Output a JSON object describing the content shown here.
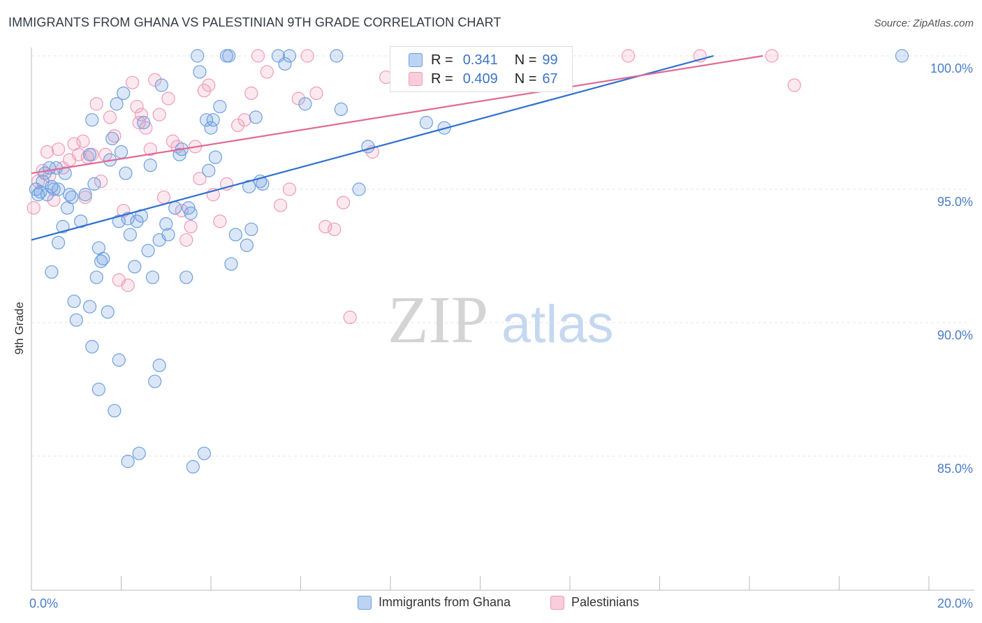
{
  "header": {
    "title": "IMMIGRANTS FROM GHANA VS PALESTINIAN 9TH GRADE CORRELATION CHART",
    "source": "Source: ZipAtlas.com"
  },
  "watermark": {
    "zip": "ZIP",
    "atlas": "atlas"
  },
  "legend": {
    "r_label": "R =",
    "n_label": "N =",
    "series": [
      {
        "name": "Immigrants from Ghana",
        "r": "0.341",
        "n": "99"
      },
      {
        "name": "Palestinians",
        "r": "0.409",
        "n": "67"
      }
    ]
  },
  "chart_data": {
    "type": "scatter",
    "title": "IMMIGRANTS FROM GHANA VS PALESTINIAN 9TH GRADE CORRELATION CHART",
    "xlabel": "",
    "ylabel": "9th Grade",
    "xlim": [
      0,
      20
    ],
    "ylim": [
      80.5,
      100.5
    ],
    "x_tick_labels": [
      "0.0%",
      "20.0%"
    ],
    "y_ticks": [
      85,
      90,
      95,
      100
    ],
    "y_tick_labels": [
      "85.0%",
      "90.0%",
      "95.0%",
      "100.0%"
    ],
    "grid": true,
    "colors": {
      "ghana": "#6f9fe0",
      "ghana_line": "#2e6fd0",
      "pal": "#f09ab8",
      "pal_line": "#e06a95"
    },
    "series": [
      {
        "name": "Immigrants from Ghana",
        "trend": {
          "x": [
            0,
            15.2
          ],
          "y": [
            93.1,
            100.0
          ]
        },
        "points": [
          [
            0.1,
            95.0
          ],
          [
            0.15,
            94.8
          ],
          [
            0.2,
            94.9
          ],
          [
            0.25,
            95.3
          ],
          [
            0.3,
            95.6
          ],
          [
            0.35,
            94.8
          ],
          [
            0.4,
            95.8
          ],
          [
            0.45,
            95.1
          ],
          [
            0.5,
            95.0
          ],
          [
            0.55,
            95.8
          ],
          [
            0.6,
            93.0
          ],
          [
            0.7,
            93.6
          ],
          [
            0.75,
            95.6
          ],
          [
            0.8,
            94.3
          ],
          [
            0.85,
            94.8
          ],
          [
            0.9,
            94.7
          ],
          [
            1.1,
            93.8
          ],
          [
            1.2,
            94.8
          ],
          [
            1.4,
            95.2
          ],
          [
            1.3,
            90.6
          ],
          [
            1.35,
            89.1
          ],
          [
            1.5,
            92.8
          ],
          [
            1.55,
            92.3
          ],
          [
            1.6,
            92.4
          ],
          [
            1.7,
            90.4
          ],
          [
            1.75,
            96.1
          ],
          [
            1.8,
            96.9
          ],
          [
            1.9,
            98.2
          ],
          [
            1.95,
            93.8
          ],
          [
            2.0,
            96.4
          ],
          [
            2.05,
            98.6
          ],
          [
            2.1,
            95.6
          ],
          [
            2.15,
            93.9
          ],
          [
            2.2,
            93.3
          ],
          [
            2.3,
            92.1
          ],
          [
            2.35,
            93.8
          ],
          [
            2.45,
            94.0
          ],
          [
            2.5,
            97.5
          ],
          [
            2.6,
            92.7
          ],
          [
            2.65,
            95.9
          ],
          [
            2.7,
            91.7
          ],
          [
            2.85,
            93.1
          ],
          [
            2.9,
            98.9
          ],
          [
            3.0,
            93.7
          ],
          [
            3.05,
            93.3
          ],
          [
            3.2,
            94.3
          ],
          [
            3.3,
            96.3
          ],
          [
            3.35,
            96.5
          ],
          [
            3.45,
            91.7
          ],
          [
            3.5,
            94.3
          ],
          [
            3.55,
            94.1
          ],
          [
            3.7,
            100.0
          ],
          [
            3.75,
            99.4
          ],
          [
            3.9,
            97.6
          ],
          [
            3.95,
            95.7
          ],
          [
            4.0,
            97.3
          ],
          [
            4.05,
            97.6
          ],
          [
            4.1,
            96.2
          ],
          [
            4.2,
            98.1
          ],
          [
            4.35,
            100.0
          ],
          [
            4.4,
            100.0
          ],
          [
            4.45,
            92.2
          ],
          [
            4.55,
            93.3
          ],
          [
            4.8,
            92.9
          ],
          [
            4.85,
            95.1
          ],
          [
            4.9,
            93.5
          ],
          [
            5.0,
            97.7
          ],
          [
            5.1,
            95.3
          ],
          [
            5.15,
            95.2
          ],
          [
            5.65,
            99.7
          ],
          [
            5.75,
            100.0
          ],
          [
            5.5,
            100.0
          ],
          [
            6.1,
            98.2
          ],
          [
            6.8,
            100.0
          ],
          [
            6.9,
            98.0
          ],
          [
            7.3,
            95.0
          ],
          [
            7.5,
            96.6
          ],
          [
            8.2,
            100.0
          ],
          [
            8.8,
            97.5
          ],
          [
            9.2,
            97.3
          ],
          [
            9.4,
            100.0
          ],
          [
            9.8,
            100.0
          ],
          [
            0.45,
            91.9
          ],
          [
            0.95,
            90.8
          ],
          [
            1.0,
            90.1
          ],
          [
            1.45,
            91.7
          ],
          [
            1.5,
            87.5
          ],
          [
            1.85,
            86.7
          ],
          [
            1.95,
            88.6
          ],
          [
            2.15,
            84.8
          ],
          [
            2.4,
            85.1
          ],
          [
            2.75,
            87.8
          ],
          [
            2.85,
            88.4
          ],
          [
            3.6,
            84.6
          ],
          [
            3.85,
            85.1
          ],
          [
            1.35,
            97.6
          ],
          [
            0.6,
            95.0
          ],
          [
            1.3,
            96.3
          ],
          [
            19.4,
            100.0
          ]
        ]
      },
      {
        "name": "Palestinians",
        "trend": {
          "x": [
            0,
            16.3
          ],
          "y": [
            95.6,
            100.0
          ]
        },
        "points": [
          [
            0.05,
            94.3
          ],
          [
            0.15,
            95.3
          ],
          [
            0.25,
            95.7
          ],
          [
            0.35,
            96.4
          ],
          [
            0.4,
            95.5
          ],
          [
            0.5,
            94.6
          ],
          [
            0.6,
            96.5
          ],
          [
            0.7,
            95.8
          ],
          [
            0.85,
            96.1
          ],
          [
            0.95,
            96.7
          ],
          [
            1.05,
            96.3
          ],
          [
            1.15,
            96.8
          ],
          [
            1.25,
            96.2
          ],
          [
            1.35,
            96.3
          ],
          [
            1.45,
            98.2
          ],
          [
            1.55,
            95.3
          ],
          [
            1.65,
            96.3
          ],
          [
            1.75,
            97.7
          ],
          [
            1.85,
            97.0
          ],
          [
            1.95,
            91.6
          ],
          [
            2.05,
            94.2
          ],
          [
            2.15,
            91.4
          ],
          [
            2.25,
            99.0
          ],
          [
            2.35,
            98.1
          ],
          [
            2.45,
            97.8
          ],
          [
            2.55,
            97.3
          ],
          [
            2.65,
            96.5
          ],
          [
            2.75,
            99.1
          ],
          [
            2.85,
            97.8
          ],
          [
            2.95,
            94.7
          ],
          [
            3.05,
            98.4
          ],
          [
            3.15,
            96.8
          ],
          [
            3.25,
            96.6
          ],
          [
            3.35,
            94.2
          ],
          [
            3.45,
            93.1
          ],
          [
            3.55,
            93.6
          ],
          [
            3.65,
            96.6
          ],
          [
            3.75,
            95.4
          ],
          [
            3.85,
            98.7
          ],
          [
            3.95,
            98.9
          ],
          [
            4.05,
            94.8
          ],
          [
            4.2,
            93.8
          ],
          [
            4.35,
            95.2
          ],
          [
            4.6,
            97.4
          ],
          [
            4.75,
            97.6
          ],
          [
            4.9,
            98.6
          ],
          [
            5.05,
            100.0
          ],
          [
            5.25,
            99.4
          ],
          [
            5.55,
            94.4
          ],
          [
            5.75,
            95.0
          ],
          [
            5.95,
            98.4
          ],
          [
            6.15,
            100.0
          ],
          [
            6.35,
            98.6
          ],
          [
            6.55,
            93.6
          ],
          [
            6.75,
            93.5
          ],
          [
            6.95,
            94.5
          ],
          [
            7.1,
            90.2
          ],
          [
            7.6,
            96.4
          ],
          [
            7.9,
            99.2
          ],
          [
            9.4,
            100.0
          ],
          [
            11.8,
            100.0
          ],
          [
            13.3,
            100.0
          ],
          [
            14.9,
            100.0
          ],
          [
            16.5,
            100.0
          ],
          [
            17.0,
            98.9
          ],
          [
            1.2,
            94.7
          ],
          [
            2.4,
            97.5
          ]
        ]
      }
    ]
  }
}
